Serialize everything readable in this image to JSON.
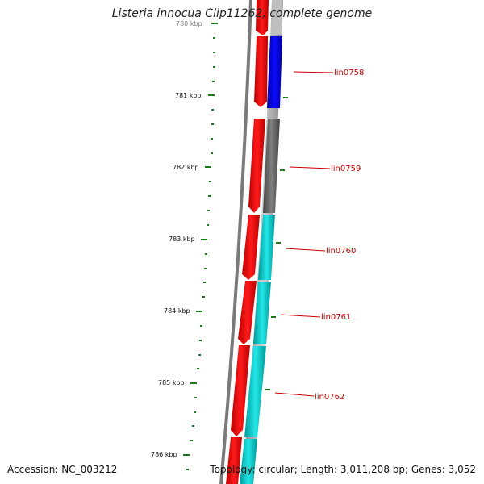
{
  "title": "Listeria innocua Clip11262, complete genome",
  "footer": {
    "accession": "Accession: NC_003212",
    "topology": "Topology: circular; Length: 3,011,208 bp; Genes: 3,052"
  },
  "ruler": {
    "labels": [
      "780 kbp",
      "781 kbp",
      "782 kbp",
      "783 kbp",
      "784 kbp",
      "785 kbp",
      "786 kbp"
    ]
  },
  "genes": [
    {
      "label": "lin0758",
      "color": "#0000ee"
    },
    {
      "label": "lin0759",
      "color": "#6e6e6e"
    },
    {
      "label": "lin0760",
      "color": "#00cccc"
    },
    {
      "label": "lin0761",
      "color": "#00cccc"
    },
    {
      "label": "lin0762",
      "color": "#00cccc"
    }
  ],
  "colors": {
    "forward_feature": "#ff0000",
    "tick": "#1a7a1a",
    "backbone": "#777777",
    "label": "#cc0000"
  }
}
